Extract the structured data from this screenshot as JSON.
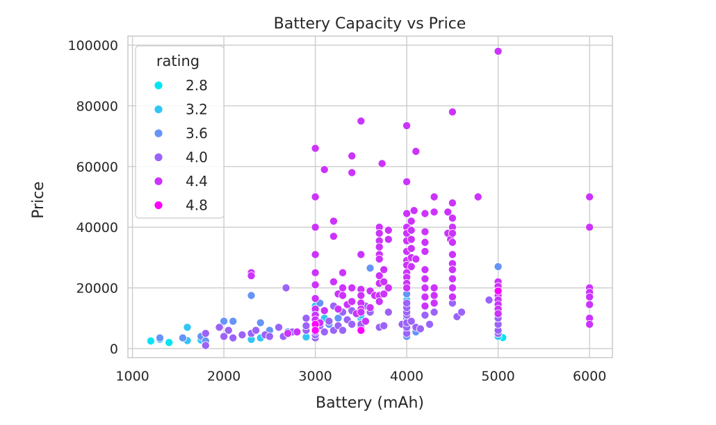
{
  "chart_data": {
    "type": "scatter",
    "title": "Battery Capacity vs Price",
    "xlabel": "Battery (mAh)",
    "ylabel": "Price",
    "xlim": [
      950,
      6250
    ],
    "ylim": [
      -3000,
      103000
    ],
    "xticks": [
      1000,
      2000,
      3000,
      4000,
      5000,
      6000
    ],
    "yticks": [
      0,
      20000,
      40000,
      60000,
      80000,
      100000
    ],
    "grid": true,
    "legend": {
      "title": "rating",
      "placement": "top-left",
      "entries": [
        {
          "label": "2.8",
          "color": "#00e5f2"
        },
        {
          "label": "3.2",
          "color": "#33c6f5"
        },
        {
          "label": "3.6",
          "color": "#6694f7"
        },
        {
          "label": "4.0",
          "color": "#9b63f8"
        },
        {
          "label": "4.4",
          "color": "#cc33fb"
        },
        {
          "label": "4.8",
          "color": "#ff00ff"
        }
      ]
    },
    "series": [
      {
        "rating": 2.8,
        "color": "#00e5f2",
        "points": [
          [
            1200,
            2500
          ],
          [
            1400,
            2000
          ],
          [
            5050,
            3600
          ]
        ]
      },
      {
        "rating": 3.2,
        "color": "#33c6f5",
        "points": [
          [
            1300,
            3000
          ],
          [
            1600,
            7000
          ],
          [
            1600,
            2600
          ],
          [
            1750,
            2800
          ],
          [
            2300,
            3000
          ],
          [
            2400,
            3500
          ],
          [
            2900,
            3800
          ],
          [
            3000,
            12000
          ],
          [
            3000,
            14000
          ],
          [
            3100,
            10000
          ],
          [
            3500,
            10000
          ],
          [
            3500,
            11000
          ],
          [
            5000,
            4000
          ],
          [
            4000,
            16000
          ]
        ]
      },
      {
        "rating": 3.6,
        "color": "#6694f7",
        "points": [
          [
            1300,
            3500
          ],
          [
            1550,
            3500
          ],
          [
            1750,
            4000
          ],
          [
            1800,
            2500
          ],
          [
            2000,
            9000
          ],
          [
            2100,
            9000
          ],
          [
            2300,
            17500
          ],
          [
            2400,
            8500
          ],
          [
            2500,
            6000
          ],
          [
            2700,
            5500
          ],
          [
            3000,
            9000
          ],
          [
            3050,
            15000
          ],
          [
            3150,
            8000
          ],
          [
            3250,
            10000
          ],
          [
            3600,
            26500
          ],
          [
            4000,
            18000
          ],
          [
            4000,
            10000
          ],
          [
            4000,
            6000
          ],
          [
            4000,
            4000
          ],
          [
            4100,
            5500
          ],
          [
            5000,
            27000
          ]
        ]
      },
      {
        "rating": 4.0,
        "color": "#9b63f8",
        "points": [
          [
            1800,
            1000
          ],
          [
            1800,
            5000
          ],
          [
            1950,
            7000
          ],
          [
            2000,
            4000
          ],
          [
            2050,
            6000
          ],
          [
            2100,
            3500
          ],
          [
            2200,
            4500
          ],
          [
            2300,
            5000
          ],
          [
            2350,
            6000
          ],
          [
            2450,
            4500
          ],
          [
            2500,
            4000
          ],
          [
            2600,
            7000
          ],
          [
            2650,
            4000
          ],
          [
            2680,
            20000
          ],
          [
            2750,
            5500
          ],
          [
            2900,
            6000
          ],
          [
            2900,
            7500
          ],
          [
            2900,
            10000
          ],
          [
            3000,
            3500
          ],
          [
            3000,
            4500
          ],
          [
            3000,
            5500
          ],
          [
            3000,
            6500
          ],
          [
            3000,
            8500
          ],
          [
            3000,
            10500
          ],
          [
            3050,
            7500
          ],
          [
            3100,
            5500
          ],
          [
            3150,
            9000
          ],
          [
            3200,
            6000
          ],
          [
            3200,
            14000
          ],
          [
            3250,
            7500
          ],
          [
            3300,
            6000
          ],
          [
            3300,
            12000
          ],
          [
            3350,
            9500
          ],
          [
            3400,
            8000
          ],
          [
            3400,
            12500
          ],
          [
            3500,
            6000
          ],
          [
            3500,
            7000
          ],
          [
            3500,
            8000
          ],
          [
            3550,
            14000
          ],
          [
            3600,
            12000
          ],
          [
            3700,
            7000
          ],
          [
            3750,
            7500
          ],
          [
            3800,
            12000
          ],
          [
            3950,
            8000
          ],
          [
            4000,
            5000
          ],
          [
            4000,
            7000
          ],
          [
            4000,
            8500
          ],
          [
            4000,
            11000
          ],
          [
            4000,
            12000
          ],
          [
            4000,
            13500
          ],
          [
            4000,
            15000
          ],
          [
            4050,
            9000
          ],
          [
            4100,
            7000
          ],
          [
            4150,
            6500
          ],
          [
            4200,
            11000
          ],
          [
            4250,
            8000
          ],
          [
            4300,
            12000
          ],
          [
            4500,
            15000
          ],
          [
            4550,
            10500
          ],
          [
            4600,
            12000
          ],
          [
            4900,
            16000
          ],
          [
            5000,
            5000
          ],
          [
            5000,
            6000
          ],
          [
            5000,
            8000
          ],
          [
            5000,
            10000
          ],
          [
            5000,
            12000
          ]
        ]
      },
      {
        "rating": 4.4,
        "color": "#cc33fb",
        "points": [
          [
            2300,
            25000
          ],
          [
            2300,
            24000
          ],
          [
            2700,
            5000
          ],
          [
            2800,
            5500
          ],
          [
            3000,
            66000
          ],
          [
            3000,
            50000
          ],
          [
            3000,
            40000
          ],
          [
            3000,
            31000
          ],
          [
            3000,
            25000
          ],
          [
            3000,
            21000
          ],
          [
            3000,
            16500
          ],
          [
            3000,
            13000
          ],
          [
            3000,
            11000
          ],
          [
            3000,
            9500
          ],
          [
            3000,
            7500
          ],
          [
            3050,
            8500
          ],
          [
            3100,
            59000
          ],
          [
            3100,
            12500
          ],
          [
            3200,
            42000
          ],
          [
            3200,
            37000
          ],
          [
            3200,
            22000
          ],
          [
            3250,
            18000
          ],
          [
            3250,
            13000
          ],
          [
            3300,
            25000
          ],
          [
            3300,
            20000
          ],
          [
            3300,
            17500
          ],
          [
            3350,
            14500
          ],
          [
            3400,
            63500
          ],
          [
            3400,
            58000
          ],
          [
            3400,
            20000
          ],
          [
            3400,
            15500
          ],
          [
            3450,
            11500
          ],
          [
            3500,
            75000
          ],
          [
            3500,
            31000
          ],
          [
            3500,
            19500
          ],
          [
            3500,
            17500
          ],
          [
            3500,
            15000
          ],
          [
            3500,
            13000
          ],
          [
            3500,
            12000
          ],
          [
            3550,
            9000
          ],
          [
            3600,
            19000
          ],
          [
            3600,
            13500
          ],
          [
            3650,
            17500
          ],
          [
            3700,
            40000
          ],
          [
            3700,
            38000
          ],
          [
            3700,
            35500
          ],
          [
            3700,
            33500
          ],
          [
            3700,
            31000
          ],
          [
            3700,
            29500
          ],
          [
            3700,
            24000
          ],
          [
            3700,
            21500
          ],
          [
            3700,
            17500
          ],
          [
            3700,
            15500
          ],
          [
            3730,
            61000
          ],
          [
            3750,
            26000
          ],
          [
            3750,
            22000
          ],
          [
            3750,
            18000
          ],
          [
            3800,
            39000
          ],
          [
            3800,
            36000
          ],
          [
            3800,
            20000
          ],
          [
            4000,
            73500
          ],
          [
            4000,
            55000
          ],
          [
            4000,
            44500
          ],
          [
            4000,
            40000
          ],
          [
            4000,
            38000
          ],
          [
            4000,
            35500
          ],
          [
            4000,
            32000
          ],
          [
            4000,
            29000
          ],
          [
            4000,
            27500
          ],
          [
            4000,
            25000
          ],
          [
            4000,
            23500
          ],
          [
            4000,
            21500
          ],
          [
            4000,
            20000
          ],
          [
            4050,
            42000
          ],
          [
            4050,
            39000
          ],
          [
            4050,
            36000
          ],
          [
            4050,
            33000
          ],
          [
            4050,
            30000
          ],
          [
            4050,
            27000
          ],
          [
            4080,
            45500
          ],
          [
            4100,
            65000
          ],
          [
            4100,
            29500
          ],
          [
            4200,
            44500
          ],
          [
            4200,
            38500
          ],
          [
            4200,
            35000
          ],
          [
            4200,
            32000
          ],
          [
            4200,
            26000
          ],
          [
            4200,
            23000
          ],
          [
            4200,
            20000
          ],
          [
            4200,
            17000
          ],
          [
            4200,
            14000
          ],
          [
            4300,
            50000
          ],
          [
            4300,
            45000
          ],
          [
            4300,
            20000
          ],
          [
            4300,
            17500
          ],
          [
            4300,
            15000
          ],
          [
            4450,
            45000
          ],
          [
            4450,
            38000
          ],
          [
            4480,
            36000
          ],
          [
            4500,
            78000
          ],
          [
            4500,
            48000
          ],
          [
            4500,
            43000
          ],
          [
            4500,
            40000
          ],
          [
            4500,
            38000
          ],
          [
            4500,
            35000
          ],
          [
            4500,
            31000
          ],
          [
            4500,
            28000
          ],
          [
            4500,
            26000
          ],
          [
            4500,
            23000
          ],
          [
            4500,
            20000
          ],
          [
            4500,
            17000
          ],
          [
            4780,
            50000
          ],
          [
            5000,
            98000
          ],
          [
            5000,
            22000
          ],
          [
            5000,
            20500
          ],
          [
            5000,
            19000
          ],
          [
            5000,
            17500
          ],
          [
            5000,
            16000
          ],
          [
            5000,
            14500
          ],
          [
            5000,
            13000
          ],
          [
            5000,
            11500
          ],
          [
            6000,
            50000
          ],
          [
            6000,
            40000
          ],
          [
            6000,
            20000
          ],
          [
            6000,
            18500
          ],
          [
            6000,
            17000
          ],
          [
            6000,
            14500
          ],
          [
            6000,
            10000
          ],
          [
            6000,
            8000
          ]
        ]
      },
      {
        "rating": 4.8,
        "color": "#ff00ff",
        "points": [
          [
            3000,
            8000
          ],
          [
            3000,
            6000
          ],
          [
            3500,
            6000
          ],
          [
            5000,
            19000
          ]
        ]
      }
    ]
  }
}
